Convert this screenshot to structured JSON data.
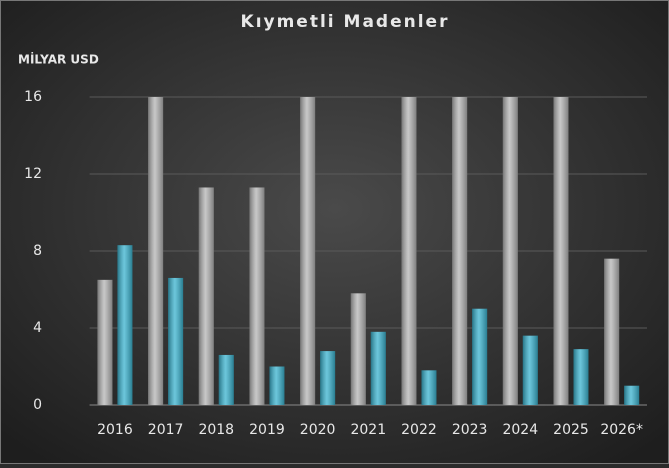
{
  "chart_data": {
    "type": "bar",
    "title": "Kıymetli Madenler",
    "y_label": "MİLYAR USD",
    "categories": [
      "2016",
      "2017",
      "2018",
      "2019",
      "2020",
      "2021",
      "2022",
      "2023",
      "2024",
      "2025",
      "2026*"
    ],
    "series": [
      {
        "color": "#b5b5b5",
        "values": [
          6.5,
          16,
          11.3,
          11.3,
          16,
          5.8,
          16,
          16,
          16,
          16,
          7.6
        ]
      },
      {
        "color": "#3bb3cf",
        "values": [
          8.3,
          6.6,
          2.6,
          2.0,
          2.8,
          3.8,
          1.8,
          5.0,
          3.6,
          2.9,
          1.0
        ]
      }
    ],
    "ylim": [
      0,
      16
    ],
    "yticks": [
      0,
      4,
      8,
      12,
      16
    ],
    "grid": true
  }
}
